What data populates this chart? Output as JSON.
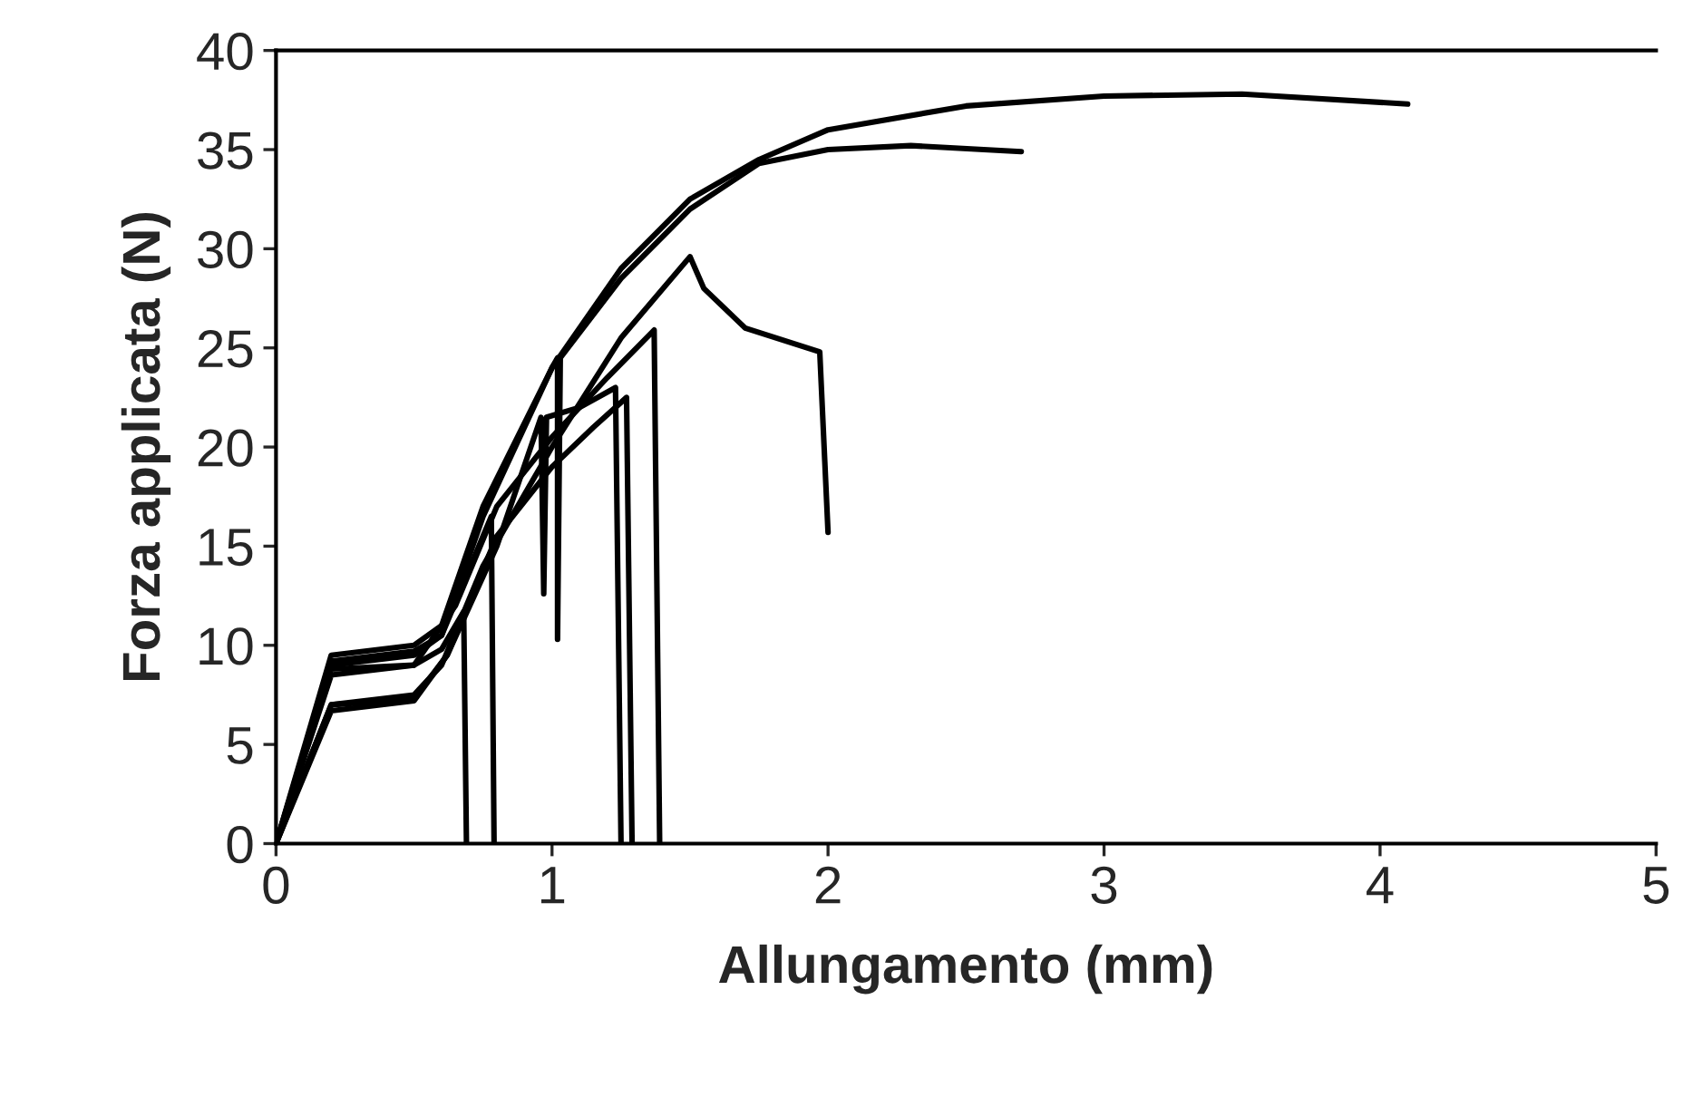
{
  "chart_data": {
    "type": "line",
    "xlabel": "Allungamento (mm)",
    "ylabel": "Forza applicata (N)",
    "xlim": [
      0,
      5
    ],
    "ylim": [
      0,
      40
    ],
    "xticks": [
      0,
      1,
      2,
      3,
      4,
      5
    ],
    "yticks": [
      0,
      5,
      10,
      15,
      20,
      25,
      30,
      35,
      40
    ],
    "line_style": "solid",
    "series": [
      {
        "color": "#000000",
        "x": [
          0,
          0.2,
          0.5,
          0.6,
          0.75,
          1.0,
          1.25,
          1.5,
          1.75,
          2.0,
          2.5,
          3.0,
          3.5,
          4.1
        ],
        "values": [
          0,
          9.5,
          10,
          11,
          17,
          24,
          29,
          32.5,
          34.5,
          36,
          37.2,
          37.7,
          37.8,
          37.3
        ]
      },
      {
        "color": "#000000",
        "x": [
          0,
          0.2,
          0.5,
          0.6,
          0.75,
          1.0,
          1.02,
          1.02,
          1.03,
          1.25,
          1.5,
          1.75,
          2.0,
          2.3,
          2.7
        ],
        "values": [
          0,
          9,
          9.5,
          10.5,
          16.5,
          24,
          24.5,
          10.3,
          24.5,
          28.5,
          32,
          34.3,
          35,
          35.2,
          34.9
        ]
      },
      {
        "color": "#000000",
        "x": [
          0,
          0.2,
          0.5,
          0.6,
          0.75,
          1.0,
          1.25,
          1.5,
          1.55,
          1.7,
          1.97,
          2.0
        ],
        "values": [
          0,
          7,
          7.5,
          9,
          14,
          20,
          25.5,
          29.6,
          28,
          26,
          24.8,
          15.7
        ]
      },
      {
        "color": "#000000",
        "x": [
          0,
          0.2,
          0.5,
          0.65,
          0.8,
          1.0,
          1.2,
          1.37,
          1.39
        ],
        "values": [
          0,
          8.8,
          9,
          12,
          17,
          20.5,
          23.5,
          25.9,
          0
        ]
      },
      {
        "color": "#000000",
        "x": [
          0,
          0.2,
          0.5,
          0.62,
          0.8,
          0.96,
          0.97,
          0.98,
          1.1,
          1.23,
          1.25
        ],
        "values": [
          0,
          7,
          7.3,
          9.5,
          15,
          21.5,
          12.6,
          21.5,
          22,
          23,
          0
        ]
      },
      {
        "color": "#000000",
        "x": [
          0,
          0.2,
          0.5,
          0.62,
          0.8,
          1.0,
          1.15,
          1.27,
          1.29
        ],
        "values": [
          0,
          6.7,
          7.2,
          9.5,
          15.5,
          19,
          21,
          22.5,
          0
        ]
      },
      {
        "color": "#000000",
        "x": [
          0,
          0.2,
          0.5,
          0.6,
          0.68,
          0.69
        ],
        "values": [
          0,
          8.5,
          9,
          9.8,
          11.7,
          0
        ]
      },
      {
        "color": "#000000",
        "x": [
          0,
          0.2,
          0.5,
          0.6,
          0.75,
          0.78,
          0.79
        ],
        "values": [
          0,
          9.2,
          9.7,
          10.5,
          15.5,
          16.5,
          0
        ]
      }
    ]
  }
}
